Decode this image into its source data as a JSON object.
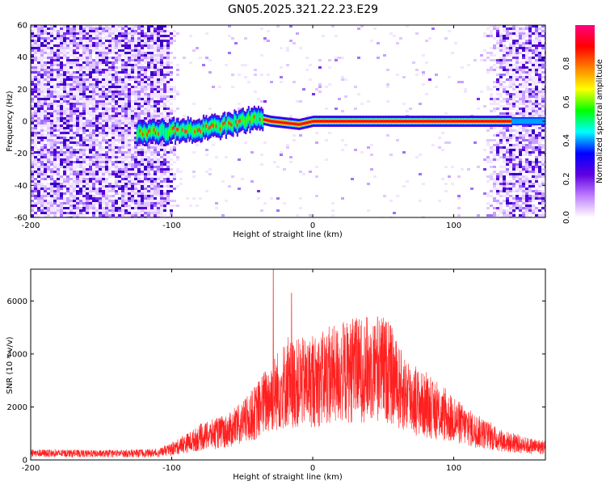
{
  "figure_title": "GN05.2025.321.22.23.E29",
  "chart_data": [
    {
      "type": "heatmap",
      "xlabel": "Height of straight line (km)",
      "ylabel": "Frequency (Hz)",
      "xlim": [
        -200,
        165
      ],
      "ylim": [
        -60,
        60
      ],
      "xticks": [
        -200,
        -100,
        0,
        100
      ],
      "yticks": [
        60,
        40,
        20,
        0,
        -20,
        -40,
        -60
      ],
      "ytick_labels": [
        "60",
        "40",
        "20",
        "0",
        "-20",
        "-40",
        "-60"
      ],
      "colorbar": {
        "label": "Normalized spectral amplitude",
        "range": [
          0,
          1
        ],
        "ticks": [
          "0.0",
          "0.2",
          "0.4",
          "0.6",
          "0.8"
        ],
        "tick_values": [
          0.0,
          0.2,
          0.4,
          0.6,
          0.8
        ],
        "colormap": [
          "#ffffff",
          "#c080ff",
          "#6000e0",
          "#0000ff",
          "#00ffff",
          "#00ff00",
          "#ffff00",
          "#ff8000",
          "#ff0000",
          "#ff0080"
        ]
      },
      "features": {
        "noise_regions_km": [
          [
            -200,
            -100
          ],
          [
            125,
            165
          ]
        ],
        "central_trace": [
          {
            "x": -125,
            "y": -7
          },
          {
            "x": -100,
            "y": -6
          },
          {
            "x": -80,
            "y": -5
          },
          {
            "x": -60,
            "y": -2
          },
          {
            "x": -40,
            "y": 2
          },
          {
            "x": -30,
            "y": 0
          },
          {
            "x": -10,
            "y": -2
          },
          {
            "x": 0,
            "y": 0
          },
          {
            "x": 50,
            "y": 0
          },
          {
            "x": 100,
            "y": 0
          },
          {
            "x": 130,
            "y": 0
          },
          {
            "x": 145,
            "y": 0
          },
          {
            "x": 165,
            "y": 0
          }
        ]
      },
      "grid": false
    },
    {
      "type": "line",
      "xlabel": "Height of straight line (km)",
      "ylabel": "SNR (10 * v/v)",
      "xlim": [
        -200,
        165
      ],
      "ylim": [
        0,
        7200
      ],
      "xticks": [
        -200,
        -100,
        0,
        100
      ],
      "yticks": [
        0,
        2000,
        4000,
        6000
      ],
      "series_color": "#ff2020",
      "series": [
        {
          "envelope_points": [
            {
              "x": -200,
              "y": 350
            },
            {
              "x": -150,
              "y": 320
            },
            {
              "x": -110,
              "y": 360
            },
            {
              "x": -100,
              "y": 550
            },
            {
              "x": -90,
              "y": 850
            },
            {
              "x": -80,
              "y": 1150
            },
            {
              "x": -70,
              "y": 1350
            },
            {
              "x": -60,
              "y": 1500
            },
            {
              "x": -50,
              "y": 1900
            },
            {
              "x": -40,
              "y": 2500
            },
            {
              "x": -30,
              "y": 3300
            },
            {
              "x": -20,
              "y": 3900
            },
            {
              "x": -10,
              "y": 4000
            },
            {
              "x": 0,
              "y": 4050
            },
            {
              "x": 10,
              "y": 4300
            },
            {
              "x": 20,
              "y": 4500
            },
            {
              "x": 30,
              "y": 4650
            },
            {
              "x": 40,
              "y": 4750
            },
            {
              "x": 50,
              "y": 4750
            },
            {
              "x": 55,
              "y": 4500
            },
            {
              "x": 60,
              "y": 3800
            },
            {
              "x": 70,
              "y": 3200
            },
            {
              "x": 80,
              "y": 2800
            },
            {
              "x": 90,
              "y": 2400
            },
            {
              "x": 100,
              "y": 2050
            },
            {
              "x": 110,
              "y": 1700
            },
            {
              "x": 120,
              "y": 1400
            },
            {
              "x": 130,
              "y": 1100
            },
            {
              "x": 140,
              "y": 900
            },
            {
              "x": 150,
              "y": 750
            },
            {
              "x": 165,
              "y": 650
            }
          ],
          "spikes": [
            {
              "x": -28,
              "y": 7200
            },
            {
              "x": -15,
              "y": 6300
            },
            {
              "x": 30,
              "y": 5200
            },
            {
              "x": 46,
              "y": 5400
            }
          ]
        }
      ],
      "grid": false
    }
  ]
}
